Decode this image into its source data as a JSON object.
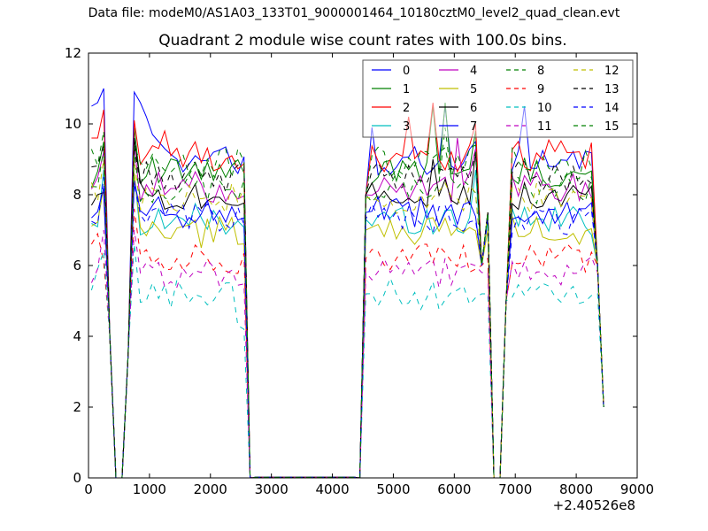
{
  "suptitle": "Data file: modeM0/AS1A03_133T01_9000001464_10180cztM0_level2_quad_clean.evt",
  "chart_data": {
    "type": "line",
    "title": "Quadrant 2 module wise count rates with 100.0s bins.",
    "xlabel": "",
    "ylabel": "",
    "x_offset_text": "+2.40526e8",
    "xlim": [
      0,
      9000
    ],
    "ylim": [
      0,
      12
    ],
    "xticks": [
      "0",
      "1000",
      "2000",
      "3000",
      "4000",
      "5000",
      "6000",
      "7000",
      "8000",
      "9000"
    ],
    "yticks": [
      "0",
      "2",
      "4",
      "6",
      "8",
      "10",
      "12"
    ],
    "x": [
      50,
      150,
      250,
      350,
      450,
      550,
      650,
      750,
      850,
      950,
      1050,
      1150,
      1250,
      1350,
      1450,
      1550,
      1650,
      1750,
      1850,
      1950,
      2050,
      2150,
      2250,
      2350,
      2450,
      2550,
      2650,
      2750,
      2850,
      2950,
      3050,
      3150,
      3250,
      3350,
      3450,
      3550,
      3650,
      3750,
      3850,
      3950,
      4050,
      4150,
      4250,
      4350,
      4450,
      4550,
      4650,
      4750,
      4850,
      4950,
      5050,
      5150,
      5250,
      5350,
      5450,
      5550,
      5650,
      5750,
      5850,
      5950,
      6050,
      6150,
      6250,
      6350,
      6450,
      6550,
      6650,
      6750,
      6850,
      6950,
      7050,
      7150,
      7250,
      7350,
      7450,
      7550,
      7650,
      7750,
      7850,
      7950,
      8050,
      8150,
      8250,
      8350,
      8450
    ],
    "segments": [
      [
        0,
        26
      ],
      [
        27,
        44
      ],
      [
        45,
        84
      ]
    ],
    "gap_value": 0.02,
    "dips": {
      "3": 4.0,
      "4": 0.0,
      "5": 0.0,
      "6": 3.5,
      "26": 0.0,
      "44": 0.0,
      "45": 8.0,
      "64": 6.0,
      "65": 7.5,
      "66": 0.0,
      "67": 0.0,
      "68": 5.0,
      "83": 6.0,
      "84": 2.0
    },
    "grid": false,
    "legend": {
      "position": "top-right",
      "columns": 4
    },
    "series": [
      {
        "name": "0",
        "color": "#0000ff",
        "dash": "solid",
        "level": 9.0,
        "spikes": {
          "0": 10.5,
          "1": 10.6,
          "2": 11.0,
          "7": 10.9,
          "8": 10.6,
          "9": 10.2,
          "10": 9.7,
          "11": 9.5,
          "12": 9.3,
          "20": 9.2,
          "24": 8.6,
          "46": 9.9,
          "58": 10.5,
          "63": 9.5,
          "71": 10.5
        }
      },
      {
        "name": "1",
        "color": "#008000",
        "dash": "solid",
        "level": 8.6,
        "spikes": {
          "2": 9.5,
          "7": 9.9,
          "56": 10.5,
          "58": 10.6,
          "63": 9.8
        }
      },
      {
        "name": "2",
        "color": "#ff0000",
        "dash": "solid",
        "level": 9.1,
        "spikes": {
          "0": 9.6,
          "1": 9.6,
          "2": 10.4,
          "7": 10.1,
          "12": 9.8,
          "23": 9.1,
          "52": 10.2,
          "56": 10.6,
          "63": 10.0
        }
      },
      {
        "name": "3",
        "color": "#00bfbf",
        "dash": "solid",
        "level": 7.3,
        "spikes": {
          "2": 8.7,
          "7": 8.6,
          "63": 8.7
        }
      },
      {
        "name": "4",
        "color": "#bf00bf",
        "dash": "solid",
        "level": 8.2,
        "spikes": {
          "2": 9.2,
          "7": 9.4,
          "60": 9.6,
          "63": 9.3
        }
      },
      {
        "name": "5",
        "color": "#bfbf00",
        "dash": "solid",
        "level": 7.0,
        "spikes": {
          "2": 8.2,
          "7": 8.6,
          "18": 6.5,
          "80": 6.6
        }
      },
      {
        "name": "6",
        "color": "#000000",
        "dash": "solid",
        "level": 8.0,
        "spikes": {
          "7": 9.6,
          "56": 9.0,
          "63": 9.2
        }
      },
      {
        "name": "7",
        "color": "#0000ff",
        "dash": "solid",
        "level": 7.5,
        "spikes": {
          "2": 8.2,
          "7": 8.4,
          "49": 7.8
        }
      },
      {
        "name": "8",
        "color": "#008000",
        "dash": "dashed",
        "level": 8.2,
        "spikes": {
          "2": 9.3,
          "7": 9.2,
          "58": 9.9
        }
      },
      {
        "name": "9",
        "color": "#ff0000",
        "dash": "dashed",
        "level": 6.2,
        "spikes": {
          "0": 6.6,
          "1": 6.9,
          "7": 7.6,
          "55": 6.6
        }
      },
      {
        "name": "10",
        "color": "#00bfbf",
        "dash": "dashed",
        "level": 5.2,
        "spikes": {
          "0": 5.3,
          "1": 5.9,
          "2": 6.4,
          "7": 6.6,
          "24": 4.3,
          "25": 4.2
        }
      },
      {
        "name": "11",
        "color": "#bf00bf",
        "dash": "dashed",
        "level": 5.8,
        "spikes": {
          "2": 7.0,
          "7": 7.0
        }
      },
      {
        "name": "12",
        "color": "#bfbf00",
        "dash": "dashed",
        "level": 7.9,
        "spikes": {
          "2": 9.0,
          "7": 9.0
        }
      },
      {
        "name": "13",
        "color": "#000000",
        "dash": "dashed",
        "level": 8.5,
        "spikes": {
          "2": 9.4,
          "7": 9.4,
          "63": 9.2
        }
      },
      {
        "name": "14",
        "color": "#0000ff",
        "dash": "dashed",
        "level": 7.3,
        "spikes": {
          "2": 8.5,
          "7": 8.3
        }
      },
      {
        "name": "15",
        "color": "#008000",
        "dash": "dashed",
        "level": 8.9,
        "spikes": {
          "2": 9.8,
          "7": 9.4,
          "63": 9.4
        }
      }
    ]
  }
}
